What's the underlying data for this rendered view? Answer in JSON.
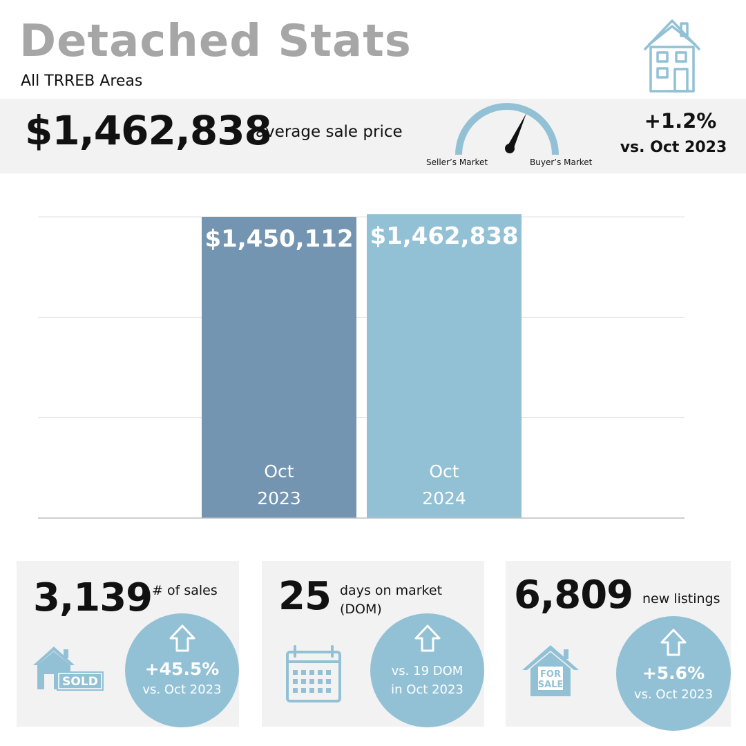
{
  "header": {
    "title": "Detached Stats",
    "subtitle": "All TRREB Areas"
  },
  "summary": {
    "avg_price": "$1,462,838",
    "avg_price_label": "average sale price",
    "gauge_left_label": "Seller’s Market",
    "gauge_right_label": "Buyer’s Market",
    "change_pct": "+1.2%",
    "change_vs": "vs. Oct 2023"
  },
  "colors": {
    "accent": "#92c1d5",
    "bar_2023": "#7395b2",
    "bar_2024": "#92c1d5",
    "title_gray": "#a6a6a6",
    "panel_gray": "#f2f2f2"
  },
  "chart_data": {
    "type": "bar",
    "categories": [
      "Oct 2023",
      "Oct 2024"
    ],
    "category_lines": [
      [
        "Oct",
        "2023"
      ],
      [
        "Oct",
        "2024"
      ]
    ],
    "values": [
      1450112,
      1462838
    ],
    "value_labels": [
      "$1,450,112",
      "$1,462,838"
    ],
    "ylim": [
      0,
      1450000
    ],
    "grid": true,
    "title": "",
    "xlabel": "",
    "ylabel": ""
  },
  "metrics": [
    {
      "value": "3,139",
      "label_lines": [
        "# of sales"
      ],
      "icon": "sold-house-icon",
      "bubble_main": "+45.5%",
      "bubble_sub": "vs. Oct 2023"
    },
    {
      "value": "25",
      "label_lines": [
        "days on market",
        "(DOM)"
      ],
      "icon": "calendar-icon",
      "bubble_lines": [
        "vs. 19 DOM",
        "in Oct 2023"
      ]
    },
    {
      "value": "6,809",
      "label_lines": [
        "new listings"
      ],
      "icon": "for-sale-house-icon",
      "bubble_main": "+5.6%",
      "bubble_sub": "vs. Oct 2023"
    }
  ],
  "icon_text": {
    "sold": "SOLD",
    "for_sale_top": "FOR",
    "for_sale_bottom": "SALE"
  }
}
